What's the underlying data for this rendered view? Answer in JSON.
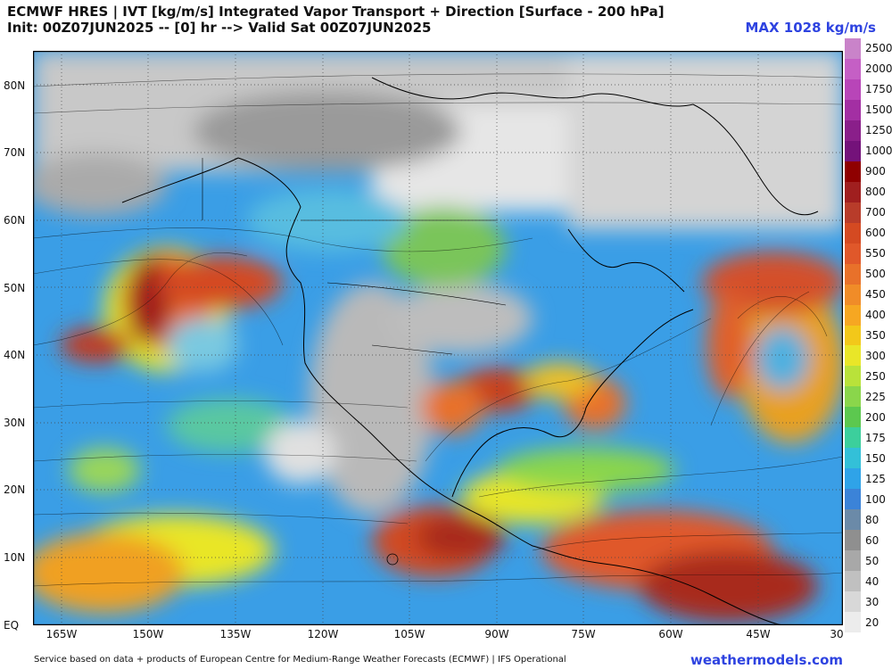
{
  "header": {
    "title_line1": "ECMWF HRES | IVT [kg/m/s] Integrated Vapor Transport + Direction [Surface - 200 hPa]",
    "title_line2": "Init: 00Z07JUN2025 -- [0] hr --> Valid Sat 00Z07JUN2025",
    "max_label": "MAX 1028 kg/m/s"
  },
  "axes": {
    "lat_labels": [
      "80N",
      "70N",
      "60N",
      "50N",
      "40N",
      "30N",
      "20N",
      "10N",
      "EQ"
    ],
    "lon_labels": [
      "165W",
      "150W",
      "135W",
      "120W",
      "105W",
      "90W",
      "75W",
      "60W",
      "45W",
      "30"
    ]
  },
  "colorbar": {
    "labels": [
      "2500",
      "2000",
      "1750",
      "1500",
      "1250",
      "1000",
      "900",
      "800",
      "700",
      "600",
      "550",
      "500",
      "450",
      "400",
      "350",
      "300",
      "250",
      "225",
      "200",
      "175",
      "150",
      "125",
      "100",
      "80",
      "60",
      "50",
      "40",
      "30",
      "20"
    ],
    "colors": [
      "#c983c9",
      "#c55fc5",
      "#b845b8",
      "#a32fa3",
      "#8a1f8a",
      "#74127a",
      "#8f0000",
      "#a01f1f",
      "#b83c2a",
      "#d44a22",
      "#e0582a",
      "#e8712a",
      "#f08c28",
      "#f6a722",
      "#f2c81a",
      "#e9e628",
      "#b9e23a",
      "#8ad64b",
      "#5cc84f",
      "#3ccf9c",
      "#33c0d8",
      "#2fa3e8",
      "#3b83d8",
      "#6b8aa8",
      "#8f8f8f",
      "#a8a8a8",
      "#c0c0c0",
      "#d8d8d8",
      "#ececec"
    ]
  },
  "footer": {
    "credit": "Service based on data + products of European Centre for Medium-Range Weather Forecasts (ECMWF) | IFS Operational",
    "brand": "weathermodels.com"
  }
}
